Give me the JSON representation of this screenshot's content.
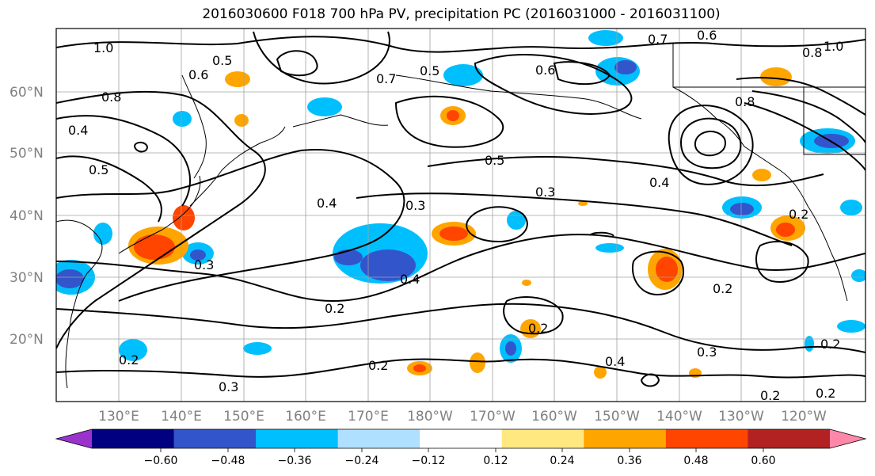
{
  "title": "2016030600 F018 700 hPa PV, precipitation PC (2016031000 - 2016031100)",
  "map": {
    "lat_labels": [
      "60°N",
      "50°N",
      "40°N",
      "30°N",
      "20°N"
    ],
    "lon_labels": [
      "130°E",
      "140°E",
      "150°E",
      "160°E",
      "170°E",
      "180°W",
      "170°W",
      "160°W",
      "150°W",
      "140°W",
      "130°W",
      "120°W"
    ],
    "contour_labels": [
      "1.0",
      "0.5",
      "0.8",
      "0.6",
      "0.7",
      "0.5",
      "0.6",
      "0.7",
      "0.8",
      "0.6",
      "0.8",
      "1.0",
      "0.4",
      "0.5",
      "0.3",
      "0.4",
      "0.3",
      "0.5",
      "0.4",
      "0.3",
      "0.4",
      "0.2",
      "0.2",
      "0.2",
      "0.3",
      "0.4",
      "0.2",
      "0.2",
      "0.3",
      "0.2",
      "0.2",
      "0.2",
      "0.2"
    ]
  },
  "colorbar": {
    "colors": [
      "#9933cc",
      "#000080",
      "#3355cc",
      "#00bfff",
      "#b0e0ff",
      "#ffffff",
      "#ffe880",
      "#ffa500",
      "#ff4500",
      "#b22222",
      "#ff88aa"
    ],
    "ticks": [
      "−0.60",
      "−0.48",
      "−0.36",
      "−0.24",
      "−0.12",
      "0.12",
      "0.24",
      "0.36",
      "0.48",
      "0.60"
    ]
  },
  "colors": {
    "grid": "#a0a0a0",
    "contour": "#000000",
    "coast": "#000000"
  }
}
